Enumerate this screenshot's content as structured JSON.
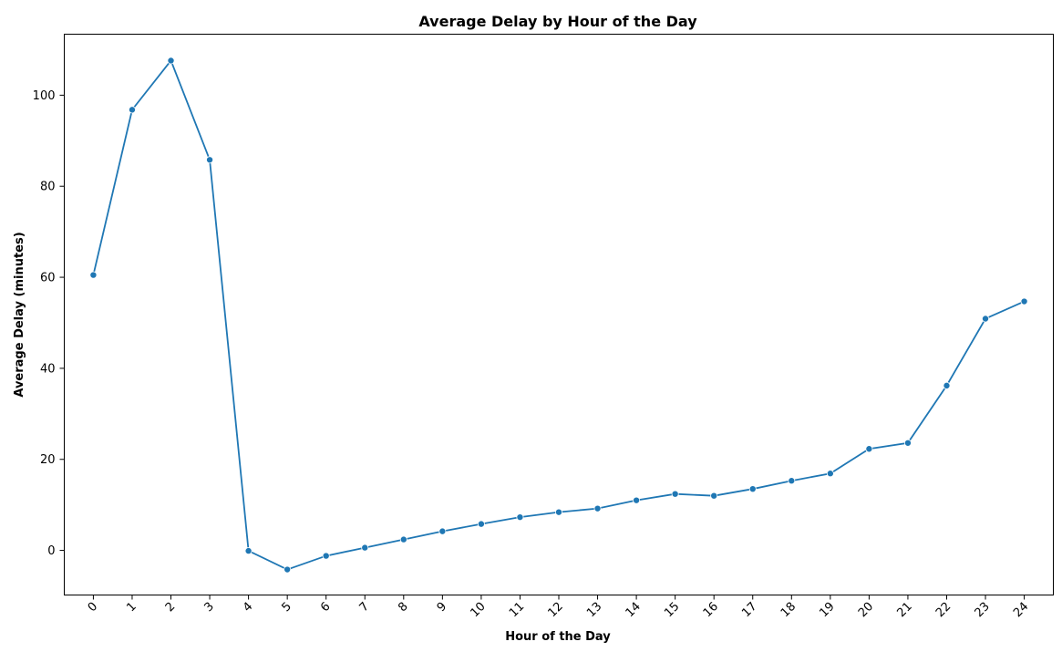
{
  "chart_data": {
    "type": "line",
    "title": "Average Delay by Hour of the Day",
    "xlabel": "Hour of the Day",
    "ylabel": "Average Delay (minutes)",
    "x": [
      0,
      1,
      2,
      3,
      4,
      5,
      6,
      7,
      8,
      9,
      10,
      11,
      12,
      13,
      14,
      15,
      16,
      17,
      18,
      19,
      20,
      21,
      22,
      23,
      24
    ],
    "x_tick_labels": [
      "0",
      "1",
      "2",
      "3",
      "4",
      "5",
      "6",
      "7",
      "8",
      "9",
      "10",
      "11",
      "12",
      "13",
      "14",
      "15",
      "16",
      "17",
      "18",
      "19",
      "20",
      "21",
      "22",
      "23",
      "24"
    ],
    "y_tick_labels": [
      "0",
      "20",
      "40",
      "60",
      "80",
      "100"
    ],
    "y_ticks": [
      0,
      20,
      40,
      60,
      80,
      100
    ],
    "ylim": [
      -9.8,
      113.4
    ],
    "xlim": [
      -0.75,
      24.75
    ],
    "grid": false,
    "series": [
      {
        "values": [
          60.5,
          96.8,
          107.6,
          85.8,
          -0.1,
          -4.2,
          -1.2,
          0.6,
          2.4,
          4.2,
          5.8,
          7.3,
          8.4,
          9.2,
          11.0,
          12.4,
          12.0,
          13.5,
          15.3,
          16.9,
          22.3,
          23.6,
          36.2,
          50.9,
          54.7
        ],
        "color": "#1f77b4"
      }
    ]
  }
}
